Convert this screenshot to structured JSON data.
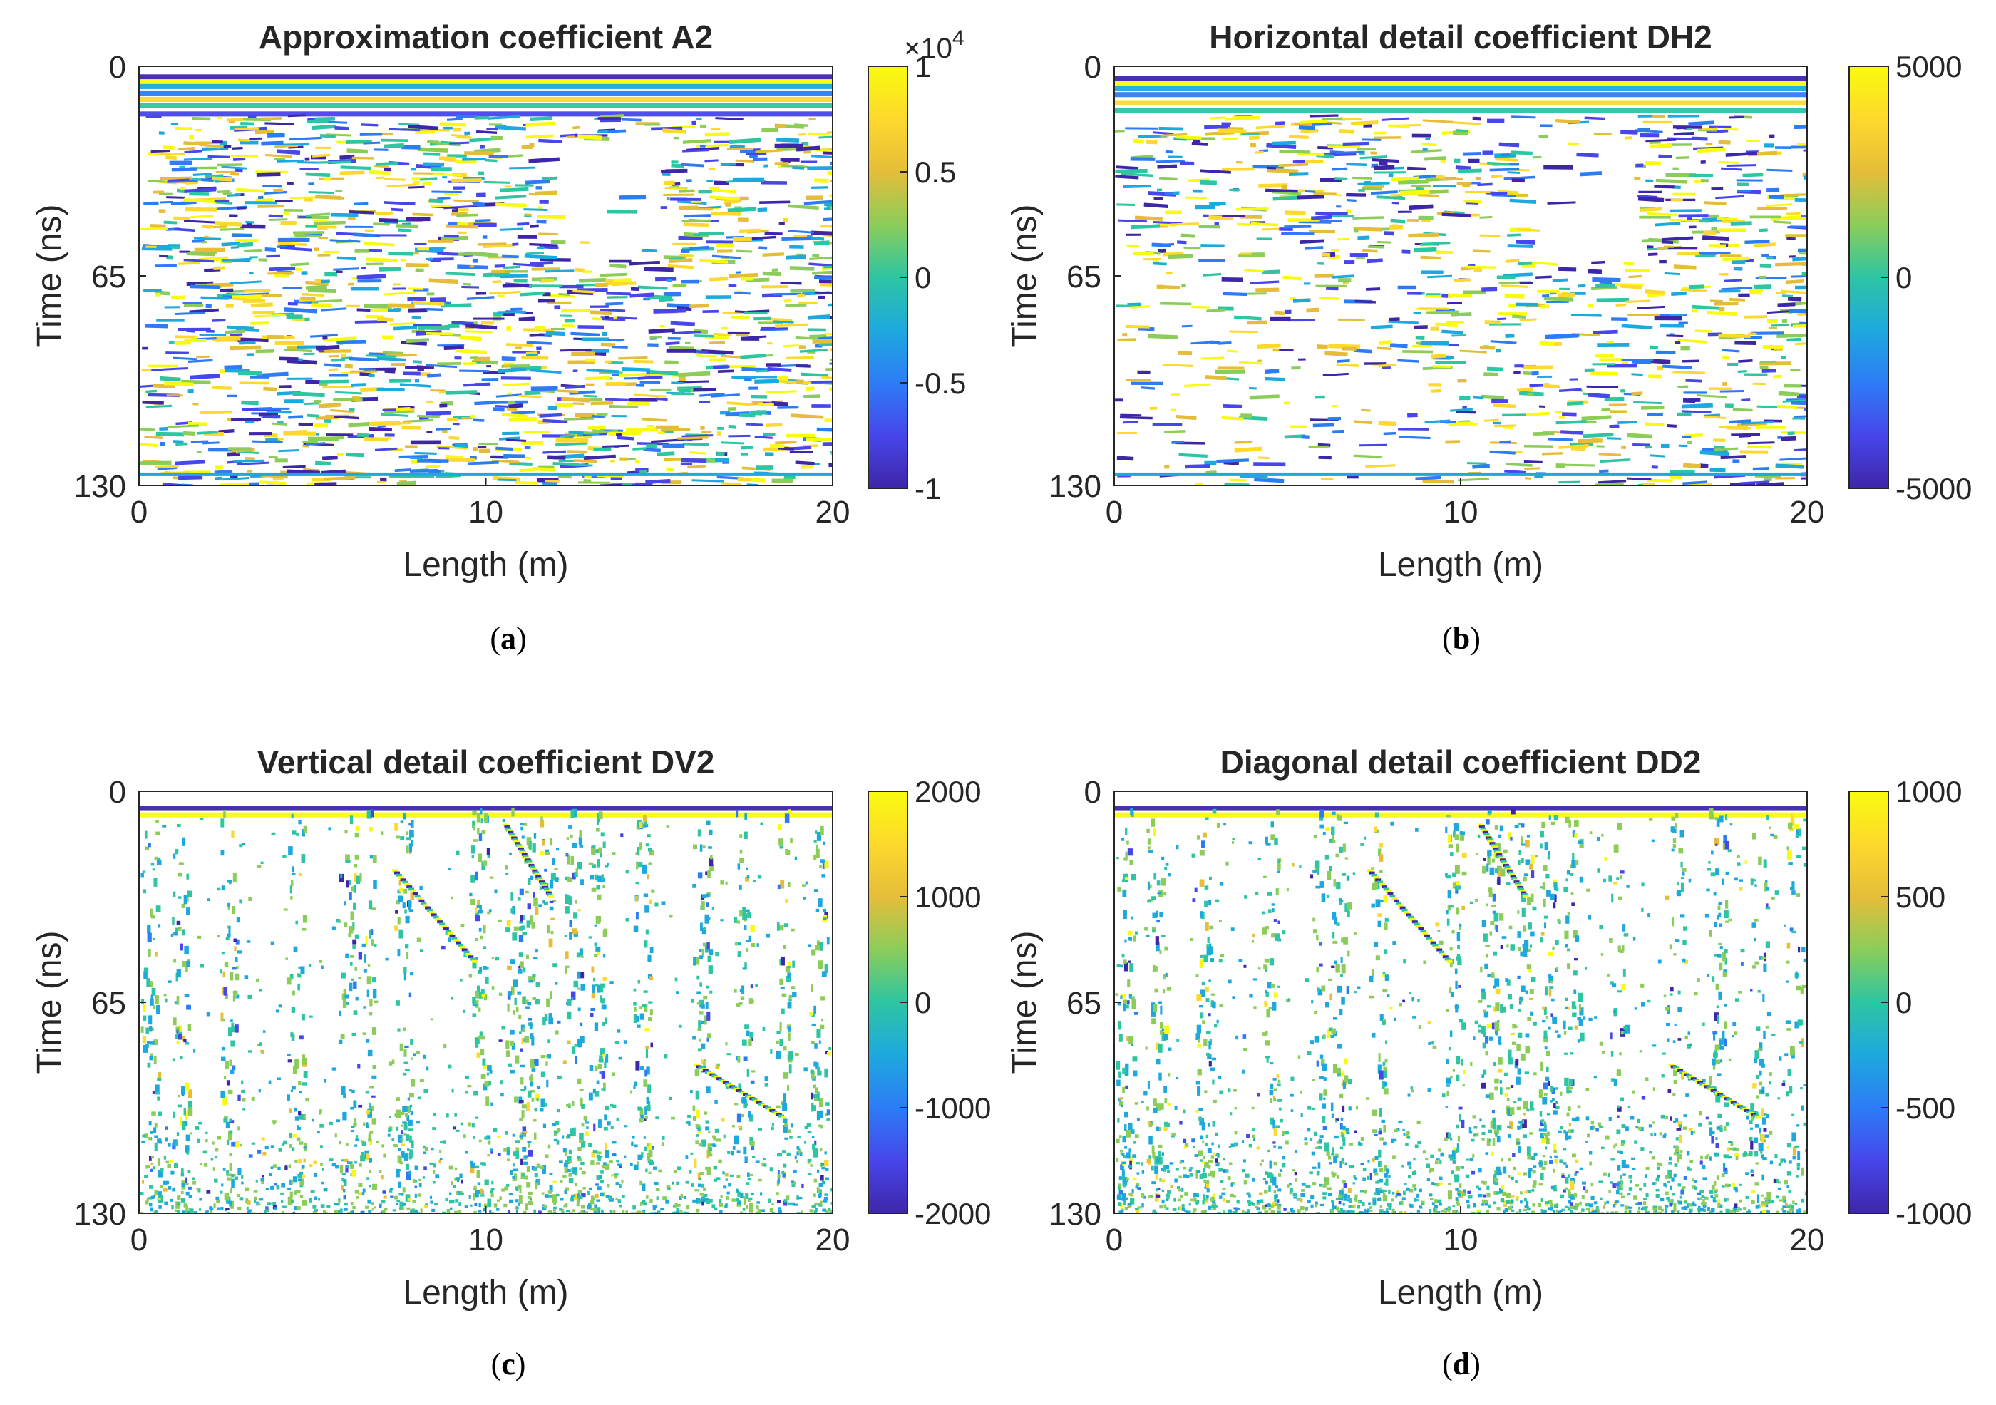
{
  "colormap": [
    "#3e26a8",
    "#4746eb",
    "#2d7cf6",
    "#1ea9de",
    "#2dc5a2",
    "#8ccd5a",
    "#e5bd3a",
    "#fdd92d",
    "#f9fb0e"
  ],
  "chart_data": [
    {
      "id": "a",
      "type": "heatmap",
      "title": "Approximation coefficient A2",
      "xlabel": "Length (m)",
      "ylabel": "Time (ns)",
      "xlim": [
        0,
        20
      ],
      "ylim": [
        0,
        130
      ],
      "xticks": [
        "0",
        "10",
        "20"
      ],
      "yticks": [
        "0",
        "65",
        "130"
      ],
      "colorbar": {
        "min": -1,
        "max": 1,
        "ticks": [
          "1",
          "0.5",
          "0",
          "-0.5",
          "-1"
        ],
        "exponent_base": "×10",
        "exponent_power": "4"
      },
      "sublabel": "a",
      "pattern": "approximation"
    },
    {
      "id": "b",
      "type": "heatmap",
      "title": "Horizontal detail coefficient DH2",
      "xlabel": "Length (m)",
      "ylabel": "Time (ns)",
      "xlim": [
        0,
        20
      ],
      "ylim": [
        0,
        130
      ],
      "xticks": [
        "0",
        "10",
        "20"
      ],
      "yticks": [
        "0",
        "65",
        "130"
      ],
      "colorbar": {
        "min": -5000,
        "max": 5000,
        "ticks": [
          "5000",
          "0",
          "-5000"
        ]
      },
      "sublabel": "b",
      "pattern": "horizontal"
    },
    {
      "id": "c",
      "type": "heatmap",
      "title": "Vertical detail coefficient DV2",
      "xlabel": "Length (m)",
      "ylabel": "Time (ns)",
      "xlim": [
        0,
        20
      ],
      "ylim": [
        0,
        130
      ],
      "xticks": [
        "0",
        "10",
        "20"
      ],
      "yticks": [
        "0",
        "65",
        "130"
      ],
      "colorbar": {
        "min": -2000,
        "max": 2000,
        "ticks": [
          "2000",
          "1000",
          "0",
          "-1000",
          "-2000"
        ]
      },
      "sublabel": "c",
      "pattern": "vertical"
    },
    {
      "id": "d",
      "type": "heatmap",
      "title": "Diagonal detail coefficient DD2",
      "xlabel": "Length (m)",
      "ylabel": "Time (ns)",
      "xlim": [
        0,
        20
      ],
      "ylim": [
        0,
        130
      ],
      "xticks": [
        "0",
        "10",
        "20"
      ],
      "yticks": [
        "0",
        "65",
        "130"
      ],
      "colorbar": {
        "min": -1000,
        "max": 1000,
        "ticks": [
          "1000",
          "500",
          "0",
          "-500",
          "-1000"
        ]
      },
      "sublabel": "d",
      "pattern": "diagonal"
    }
  ]
}
